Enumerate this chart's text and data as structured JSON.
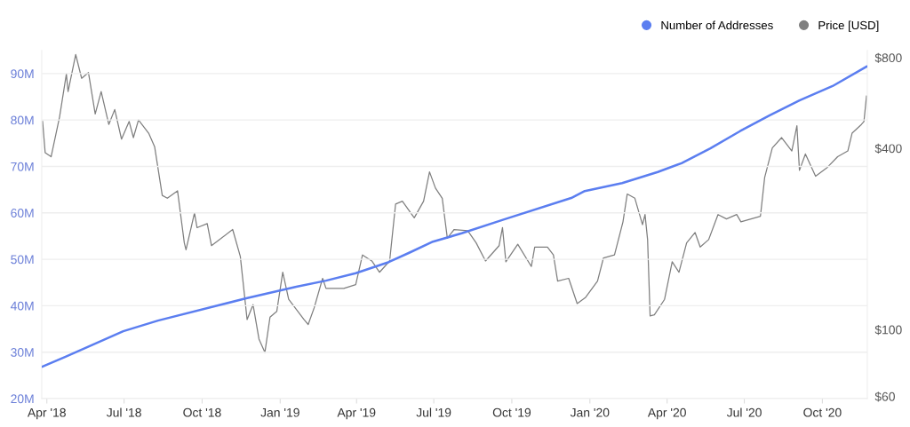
{
  "chart_data": {
    "type": "line",
    "series": [
      {
        "name": "Number of Addresses",
        "color": "#5b7ef0",
        "axis": "y",
        "x": [
          "2018-03-27",
          "2018-04-23",
          "2018-06-30",
          "2018-08-10",
          "2018-10-25",
          "2018-11-22",
          "2019-01-20",
          "2019-02-24",
          "2019-03-31",
          "2019-05-09",
          "2019-06-02",
          "2019-06-30",
          "2019-08-03",
          "2019-09-22",
          "2019-12-10",
          "2019-12-26",
          "2020-02-08",
          "2020-03-21",
          "2020-04-18",
          "2020-05-22",
          "2020-06-26",
          "2020-07-31",
          "2020-09-04",
          "2020-10-13",
          "2020-11-22"
        ],
        "values": [
          26.9,
          29.0,
          34.5,
          36.8,
          40.3,
          41.6,
          44.1,
          45.4,
          47.0,
          49.4,
          51.4,
          53.8,
          55.6,
          58.6,
          63.2,
          64.7,
          66.4,
          68.8,
          70.7,
          73.9,
          77.6,
          81.0,
          84.2,
          87.3,
          91.5
        ]
      },
      {
        "name": "Price [USD]",
        "color": "#7f7f7f",
        "axis": "y2",
        "x": [
          "2018-03-27",
          "2018-03-30",
          "2018-04-06",
          "2018-04-16",
          "2018-04-24",
          "2018-04-26",
          "2018-05-05",
          "2018-05-12",
          "2018-05-20",
          "2018-05-28",
          "2018-06-04",
          "2018-06-13",
          "2018-06-20",
          "2018-06-28",
          "2018-07-07",
          "2018-07-12",
          "2018-07-18",
          "2018-07-30",
          "2018-08-06",
          "2018-08-15",
          "2018-08-21",
          "2018-09-02",
          "2018-09-10",
          "2018-09-12",
          "2018-09-22",
          "2018-09-25",
          "2018-10-07",
          "2018-10-12",
          "2018-11-06",
          "2018-11-15",
          "2018-11-23",
          "2018-11-30",
          "2018-12-07",
          "2018-12-14",
          "2018-12-20",
          "2018-12-28",
          "2019-01-04",
          "2019-01-11",
          "2019-01-29",
          "2019-02-03",
          "2019-02-10",
          "2019-02-20",
          "2019-02-24",
          "2019-03-17",
          "2019-03-31",
          "2019-04-08",
          "2019-04-19",
          "2019-04-28",
          "2019-05-10",
          "2019-05-17",
          "2019-05-25",
          "2019-06-08",
          "2019-06-19",
          "2019-06-26",
          "2019-07-03",
          "2019-07-11",
          "2019-07-17",
          "2019-07-25",
          "2019-08-10",
          "2019-08-20",
          "2019-08-31",
          "2019-09-16",
          "2019-09-20",
          "2019-09-24",
          "2019-10-08",
          "2019-10-24",
          "2019-10-28",
          "2019-11-12",
          "2019-11-19",
          "2019-11-24",
          "2019-12-07",
          "2019-12-17",
          "2019-12-27",
          "2020-01-10",
          "2020-01-17",
          "2020-01-30",
          "2020-02-09",
          "2020-02-14",
          "2020-02-23",
          "2020-03-03",
          "2020-03-06",
          "2020-03-09",
          "2020-03-12",
          "2020-03-17",
          "2020-03-29",
          "2020-04-07",
          "2020-04-15",
          "2020-04-24",
          "2020-05-04",
          "2020-05-10",
          "2020-05-20",
          "2020-05-31",
          "2020-06-10",
          "2020-06-22",
          "2020-06-27",
          "2020-07-20",
          "2020-07-25",
          "2020-08-03",
          "2020-08-14",
          "2020-08-26",
          "2020-09-01",
          "2020-09-04",
          "2020-09-11",
          "2020-09-23",
          "2020-10-07",
          "2020-10-19",
          "2020-10-31",
          "2020-11-05",
          "2020-11-16",
          "2020-11-19",
          "2020-11-22"
        ],
        "values": [
          491,
          387,
          375,
          509,
          706,
          617,
          819,
          683,
          714,
          520,
          617,
          480,
          538,
          429,
          491,
          434,
          497,
          449,
          405,
          279,
          273,
          289,
          194,
          184,
          244,
          218,
          225,
          190,
          215,
          175,
          108,
          121,
          93,
          84,
          110,
          115,
          155,
          126,
          108,
          104,
          118,
          148,
          137,
          137,
          141,
          177,
          169,
          155,
          169,
          261,
          267,
          235,
          267,
          334,
          295,
          273,
          201,
          215,
          213,
          194,
          169,
          190,
          218,
          168,
          192,
          162,
          188,
          188,
          177,
          145,
          148,
          122,
          128,
          145,
          173,
          177,
          228,
          282,
          273,
          223,
          241,
          199,
          111,
          112,
          126,
          168,
          155,
          194,
          210,
          188,
          199,
          241,
          233,
          241,
          228,
          238,
          320,
          401,
          434,
          392,
          475,
          338,
          383,
          323,
          346,
          375,
          392,
          449,
          480,
          491,
          596
        ]
      }
    ],
    "xlim": [
      "2018-03-26",
      "2020-11-23"
    ],
    "xticks": [
      {
        "value": "2018-04-01",
        "label": "Apr '18"
      },
      {
        "value": "2018-07-01",
        "label": "Jul '18"
      },
      {
        "value": "2018-10-01",
        "label": "Oct '18"
      },
      {
        "value": "2019-01-01",
        "label": "Jan '19"
      },
      {
        "value": "2019-04-01",
        "label": "Apr '19"
      },
      {
        "value": "2019-07-01",
        "label": "Jul '19"
      },
      {
        "value": "2019-10-01",
        "label": "Oct '19"
      },
      {
        "value": "2020-01-01",
        "label": "Jan '20"
      },
      {
        "value": "2020-04-01",
        "label": "Apr '20"
      },
      {
        "value": "2020-07-01",
        "label": "Jul '20"
      },
      {
        "value": "2020-10-01",
        "label": "Oct '20"
      }
    ],
    "ylim": [
      20,
      95
    ],
    "yticks": [
      {
        "value": 20,
        "label": "20M"
      },
      {
        "value": 30,
        "label": "30M"
      },
      {
        "value": 40,
        "label": "40M"
      },
      {
        "value": 50,
        "label": "50M"
      },
      {
        "value": 60,
        "label": "60M"
      },
      {
        "value": 70,
        "label": "70M"
      },
      {
        "value": 80,
        "label": "80M"
      },
      {
        "value": 90,
        "label": "90M"
      }
    ],
    "log": "y2",
    "y2lim": [
      59,
      846
    ],
    "y2ticks": [
      {
        "value": 60,
        "label": "$60"
      },
      {
        "value": 100,
        "label": "$100"
      },
      {
        "value": 400,
        "label": "$400"
      },
      {
        "value": 800,
        "label": "$800"
      }
    ],
    "grid": "y",
    "legend": "top right",
    "marker": "none",
    "line_style": "solid"
  }
}
